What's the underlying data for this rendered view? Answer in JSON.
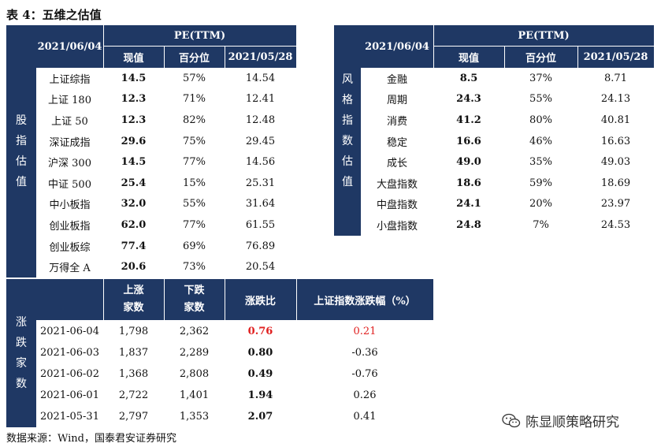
{
  "title": "表 4：五维之估值",
  "source": "数据来源：Wind，国泰君安证券研究",
  "watermark": "陈显顺策略研究",
  "left_table": {
    "side_label": [
      "股",
      "指",
      "估",
      "值"
    ],
    "date_header": "2021/06/04",
    "group_header": "PE(TTM)",
    "col_headers": [
      "现值",
      "百分位",
      "2021/05/28"
    ],
    "rows": [
      {
        "name": "上证综指",
        "value": "14.5",
        "pct": "57%",
        "prev": "14.54"
      },
      {
        "name": "上证 180",
        "value": "12.3",
        "pct": "71%",
        "prev": "12.41"
      },
      {
        "name": "上证 50",
        "value": "12.3",
        "pct": "82%",
        "prev": "12.48"
      },
      {
        "name": "深证成指",
        "value": "29.6",
        "pct": "75%",
        "prev": "29.45"
      },
      {
        "name": "沪深 300",
        "value": "14.5",
        "pct": "77%",
        "prev": "14.56"
      },
      {
        "name": "中证 500",
        "value": "25.4",
        "pct": "15%",
        "prev": "25.31"
      },
      {
        "name": "中小板指",
        "value": "32.0",
        "pct": "55%",
        "prev": "31.64"
      },
      {
        "name": "创业板指",
        "value": "62.0",
        "pct": "77%",
        "prev": "61.55"
      },
      {
        "name": "创业板综",
        "value": "77.4",
        "pct": "69%",
        "prev": "76.89"
      },
      {
        "name": "万得全 A",
        "value": "20.6",
        "pct": "73%",
        "prev": "20.54"
      }
    ]
  },
  "right_table": {
    "side_label": [
      "风",
      "格",
      "指",
      "数",
      "估",
      "值"
    ],
    "date_header": "2021/06/04",
    "group_header": "PE(TTM)",
    "col_headers": [
      "现值",
      "百分位",
      "2021/05/28"
    ],
    "rows": [
      {
        "name": "金融",
        "value": "8.5",
        "pct": "37%",
        "prev": "8.71"
      },
      {
        "name": "周期",
        "value": "24.3",
        "pct": "55%",
        "prev": "24.13"
      },
      {
        "name": "消费",
        "value": "41.2",
        "pct": "80%",
        "prev": "40.81"
      },
      {
        "name": "稳定",
        "value": "16.6",
        "pct": "46%",
        "prev": "16.63"
      },
      {
        "name": "成长",
        "value": "49.0",
        "pct": "35%",
        "prev": "49.03"
      },
      {
        "name": "大盘指数",
        "value": "18.6",
        "pct": "59%",
        "prev": "18.69"
      },
      {
        "name": "中盘指数",
        "value": "24.1",
        "pct": "20%",
        "prev": "23.97"
      },
      {
        "name": "小盘指数",
        "value": "24.8",
        "pct": "7%",
        "prev": "24.53"
      }
    ]
  },
  "bottom_table": {
    "side_label": [
      "涨",
      "跌",
      "家",
      "数"
    ],
    "col_headers": [
      [
        "上涨",
        "家数"
      ],
      [
        "下跌",
        "家数"
      ],
      [
        "涨跌比"
      ],
      [
        "上证指数涨跌幅（%）"
      ]
    ],
    "rows": [
      {
        "date": "2021-06-04",
        "up": "1,798",
        "down": "2,362",
        "ratio": "0.76",
        "chg": "0.21",
        "highlight": true
      },
      {
        "date": "2021-06-03",
        "up": "1,837",
        "down": "2,289",
        "ratio": "0.80",
        "chg": "-0.36",
        "highlight": false
      },
      {
        "date": "2021-06-02",
        "up": "1,368",
        "down": "2,808",
        "ratio": "0.49",
        "chg": "-0.76",
        "highlight": false
      },
      {
        "date": "2021-06-01",
        "up": "2,722",
        "down": "1,401",
        "ratio": "1.94",
        "chg": "0.26",
        "highlight": false
      },
      {
        "date": "2021-05-31",
        "up": "2,797",
        "down": "1,353",
        "ratio": "2.07",
        "chg": "0.41",
        "highlight": false
      }
    ],
    "highlight_color": "#e02020"
  },
  "colors": {
    "header_bg": "#1f3864",
    "header_text": "#ffffff"
  }
}
